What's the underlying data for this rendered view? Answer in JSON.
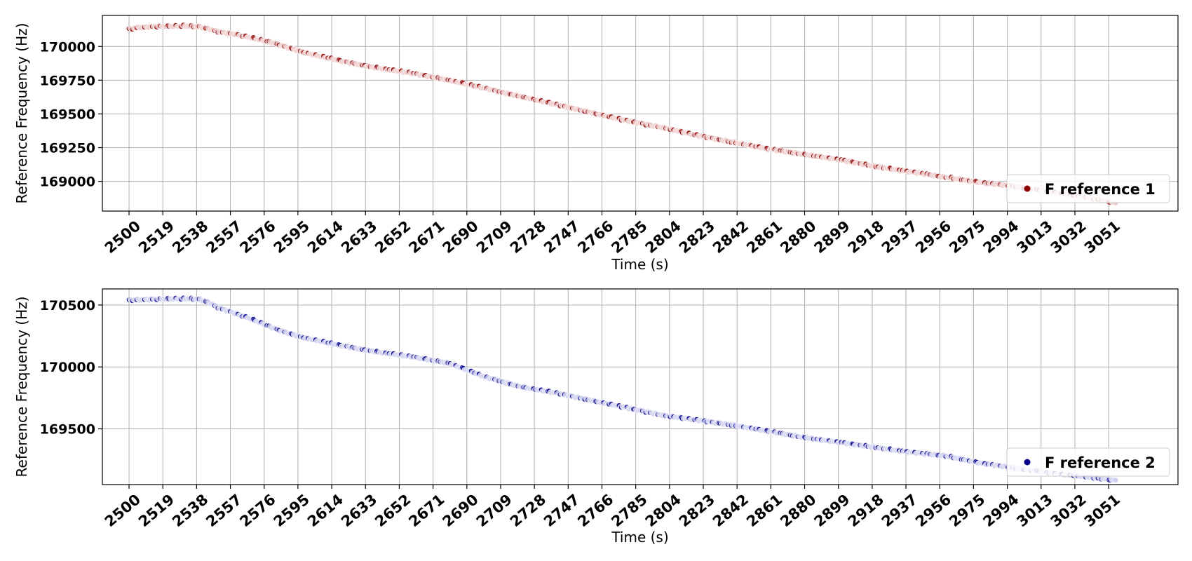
{
  "chart_data": [
    {
      "type": "scatter",
      "title": "",
      "xlabel": "Time (s)",
      "ylabel": "Reference Frequency (Hz)",
      "xlim": [
        2485,
        3090
      ],
      "ylim": [
        168780,
        170230
      ],
      "xticks": [
        2500,
        2519,
        2538,
        2557,
        2576,
        2595,
        2614,
        2633,
        2652,
        2671,
        2690,
        2709,
        2728,
        2747,
        2766,
        2785,
        2804,
        2823,
        2842,
        2861,
        2880,
        2899,
        2918,
        2937,
        2956,
        2975,
        2994,
        3013,
        3032,
        3051
      ],
      "yticks": [
        169000,
        169250,
        169500,
        169750,
        170000
      ],
      "grid": true,
      "legend_position": "lower-right",
      "series": [
        {
          "name": "F reference 1",
          "color": "#8b0000",
          "light_color": "#eec8c8",
          "x": [
            2500,
            2505,
            2510,
            2515,
            2520,
            2525,
            2530,
            2535,
            2540,
            2545,
            2550,
            2560,
            2570,
            2580,
            2590,
            2600,
            2620,
            2640,
            2660,
            2680,
            2700,
            2720,
            2740,
            2760,
            2780,
            2800,
            2820,
            2840,
            2860,
            2880,
            2900,
            2920,
            2940,
            2960,
            2980,
            3000,
            3020,
            3040,
            3055
          ],
          "y": [
            170130,
            170140,
            170145,
            170150,
            170150,
            170150,
            170152,
            170150,
            170145,
            170130,
            170110,
            170090,
            170060,
            170030,
            169990,
            169950,
            169890,
            169840,
            169800,
            169750,
            169690,
            169630,
            169570,
            169510,
            169450,
            169400,
            169340,
            169290,
            169240,
            169200,
            169160,
            169110,
            169070,
            169030,
            168990,
            168960,
            168920,
            168880,
            168840
          ]
        }
      ]
    },
    {
      "type": "scatter",
      "title": "",
      "xlabel": "Time (s)",
      "ylabel": "Reference Frequency (Hz)",
      "xlim": [
        2485,
        3090
      ],
      "ylim": [
        169050,
        170630
      ],
      "xticks": [
        2500,
        2519,
        2538,
        2557,
        2576,
        2595,
        2614,
        2633,
        2652,
        2671,
        2690,
        2709,
        2728,
        2747,
        2766,
        2785,
        2804,
        2823,
        2842,
        2861,
        2880,
        2899,
        2918,
        2937,
        2956,
        2975,
        2994,
        3013,
        3032,
        3051
      ],
      "yticks": [
        169500,
        170000,
        170500
      ],
      "grid": true,
      "legend_position": "lower-right",
      "series": [
        {
          "name": "F reference 2",
          "color": "#00008b",
          "light_color": "#cdcdf0",
          "x": [
            2500,
            2505,
            2510,
            2515,
            2520,
            2525,
            2530,
            2535,
            2540,
            2545,
            2550,
            2560,
            2570,
            2580,
            2590,
            2600,
            2620,
            2640,
            2660,
            2680,
            2700,
            2720,
            2740,
            2760,
            2780,
            2800,
            2820,
            2840,
            2860,
            2880,
            2900,
            2920,
            2940,
            2960,
            2980,
            3000,
            3020,
            3040,
            3055
          ],
          "y": [
            170540,
            170542,
            170545,
            170548,
            170550,
            170550,
            170550,
            170550,
            170545,
            170520,
            170480,
            170430,
            170380,
            170320,
            170270,
            170230,
            170170,
            170120,
            170080,
            170030,
            169920,
            169840,
            169790,
            169730,
            169670,
            169610,
            169570,
            169530,
            169480,
            169430,
            169390,
            169350,
            169310,
            169280,
            169220,
            169180,
            169140,
            169110,
            169085
          ]
        }
      ]
    }
  ]
}
